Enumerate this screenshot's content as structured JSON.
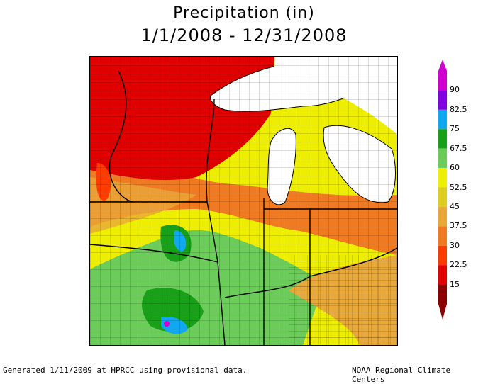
{
  "title": "Precipitation (in)",
  "subtitle": "1/1/2008 - 12/31/2008",
  "legend": {
    "labels": [
      "90",
      "82.5",
      "75",
      "67.5",
      "60",
      "52.5",
      "45",
      "37.5",
      "30",
      "22.5",
      "15"
    ],
    "colors": [
      "#8b0000",
      "#e00000",
      "#ff3c00",
      "#f07a22",
      "#e8a83a",
      "#dccc20",
      "#eeee00",
      "#6ccc5a",
      "#18a018",
      "#10a8f0",
      "#8000e0",
      "#d000d0"
    ]
  },
  "footer": {
    "left": "Generated 1/11/2009 at HPRCC using provisional data.",
    "right": "NOAA Regional Climate Centers"
  }
}
